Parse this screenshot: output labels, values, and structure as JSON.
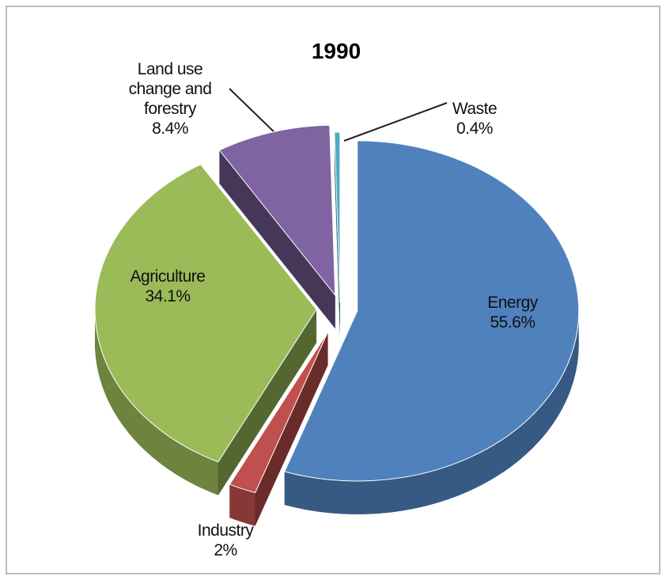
{
  "chart_data": {
    "type": "pie",
    "title": "1990",
    "categories": [
      "Energy",
      "Industry",
      "Agriculture",
      "Land use change and forestry",
      "Waste"
    ],
    "values": [
      55.6,
      2,
      34.1,
      8.4,
      0.4
    ],
    "value_labels": [
      "55.6%",
      "2%",
      "34.1%",
      "8.4%",
      "0.4%"
    ],
    "colors": [
      "#4f81bd",
      "#c0504d",
      "#9bbb59",
      "#8064a2",
      "#4bacc6"
    ]
  }
}
